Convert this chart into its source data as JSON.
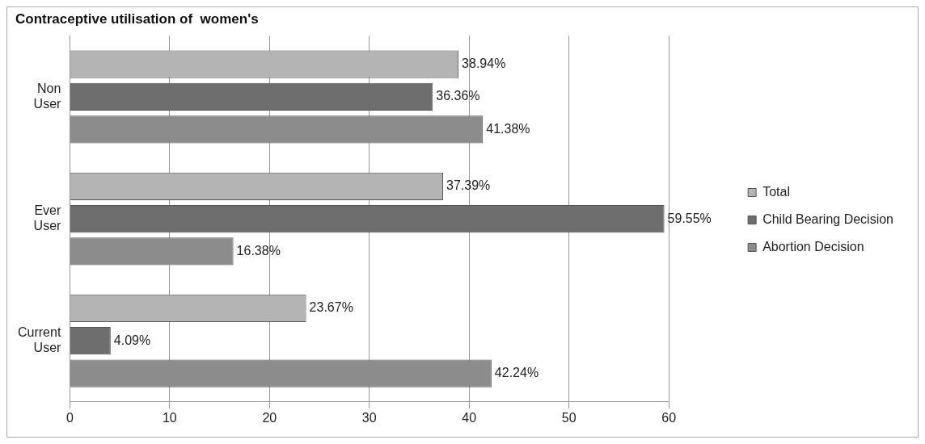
{
  "chart_data": {
    "type": "bar",
    "orientation": "horizontal",
    "title": "Contraceptive utilisation of  women's",
    "categories": [
      "Non\nUser",
      "Ever\nUser",
      "Current\nUser"
    ],
    "series": [
      {
        "name": "Total",
        "color": "#b4b4b4",
        "values": [
          38.94,
          37.39,
          23.67
        ],
        "value_labels": [
          "38.94%",
          "37.39%",
          "23.67%"
        ]
      },
      {
        "name": "Child Bearing Decision",
        "color": "#6e6e6e",
        "values": [
          36.36,
          59.55,
          4.09
        ],
        "value_labels": [
          "36.36%",
          "59.55%",
          "4.09%"
        ]
      },
      {
        "name": "Abortion Decision",
        "color": "#8c8c8c",
        "values": [
          41.38,
          16.38,
          42.24
        ],
        "value_labels": [
          "41.38%",
          "16.38%",
          "42.24%"
        ]
      }
    ],
    "xlim": [
      0,
      60
    ],
    "xticks": [
      0,
      10,
      20,
      30,
      40,
      50,
      60
    ],
    "grid": "x",
    "legend": "right"
  }
}
